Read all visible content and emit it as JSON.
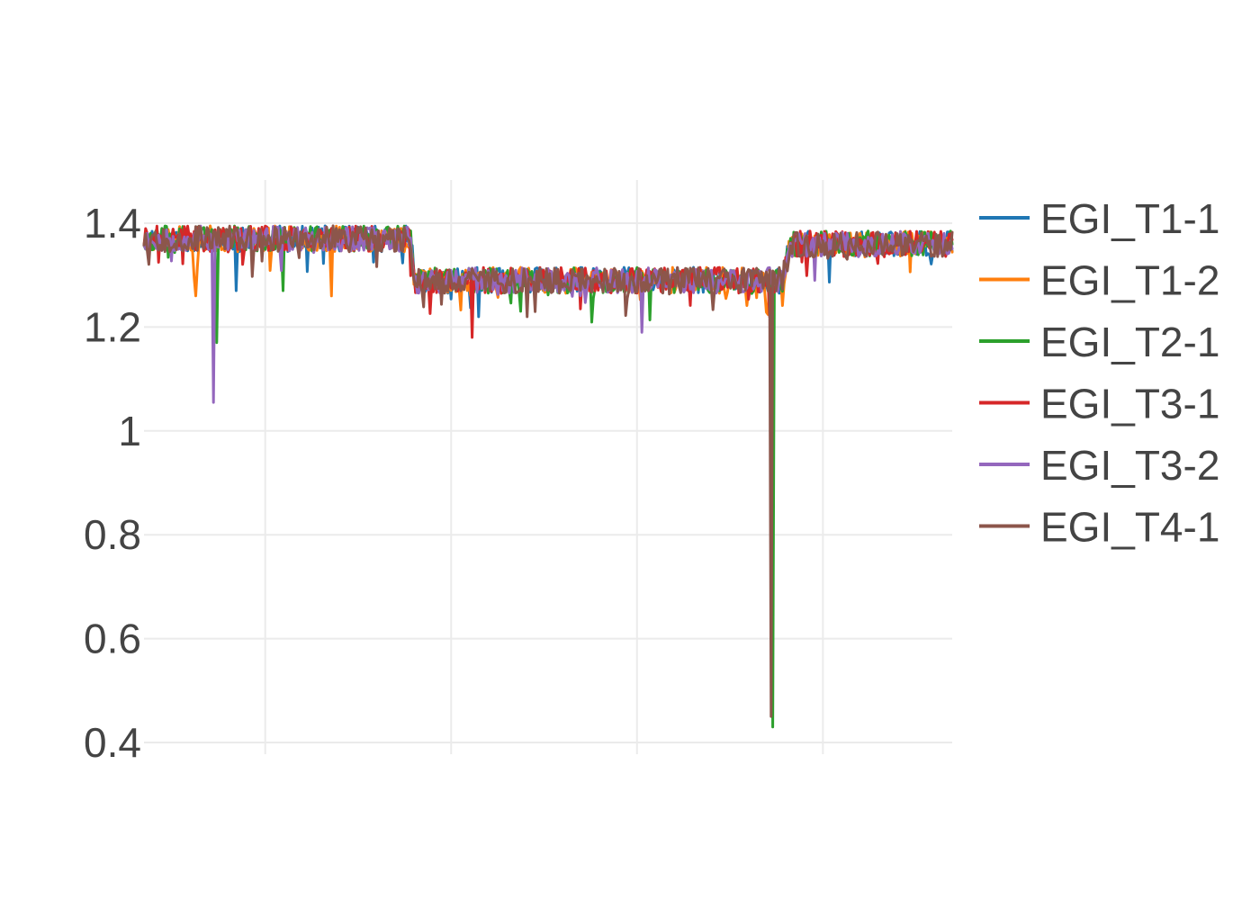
{
  "chart_data": {
    "type": "line",
    "title": "",
    "xlabel": "",
    "ylabel": "",
    "x_range": [
      0,
      1000
    ],
    "x_grid": [
      150,
      380,
      610,
      840
    ],
    "ylim": [
      0.4,
      1.48
    ],
    "y_ticks": [
      {
        "value": 0.4,
        "label": "0.4"
      },
      {
        "value": 0.6,
        "label": "0.6"
      },
      {
        "value": 0.8,
        "label": "0.8"
      },
      {
        "value": 1.0,
        "label": "1"
      },
      {
        "value": 1.2,
        "label": "1.2"
      },
      {
        "value": 1.4,
        "label": "1.4"
      }
    ],
    "grid": true,
    "legend_position": "right",
    "profile": {
      "segments": [
        {
          "x_start": 0,
          "x_end": 330,
          "level": 1.37
        },
        {
          "x_start": 335,
          "x_end": 790,
          "level": 1.29
        },
        {
          "x_start": 800,
          "x_end": 1000,
          "level": 1.36
        }
      ],
      "noise": 0.025
    },
    "series": [
      {
        "name": "EGI_T1-1",
        "color": "#1f77b4",
        "seed": 11,
        "spikes": [
          {
            "x": 115,
            "value": 1.27
          },
          {
            "x": 415,
            "value": 1.22
          }
        ]
      },
      {
        "name": "EGI_T1-2",
        "color": "#ff7f0e",
        "seed": 23,
        "spikes": [
          {
            "x": 65,
            "value": 1.26
          },
          {
            "x": 233,
            "value": 1.26
          }
        ]
      },
      {
        "name": "EGI_T2-1",
        "color": "#2ca02c",
        "seed": 37,
        "spikes": [
          {
            "x": 90,
            "value": 1.17
          },
          {
            "x": 778,
            "value": 0.43
          },
          {
            "x": 172,
            "value": 1.27
          }
        ]
      },
      {
        "name": "EGI_T3-1",
        "color": "#d62728",
        "seed": 41,
        "spikes": [
          {
            "x": 406,
            "value": 1.18
          },
          {
            "x": 775,
            "value": 1.22
          }
        ]
      },
      {
        "name": "EGI_T3-2",
        "color": "#9467bd",
        "seed": 53,
        "spikes": [
          {
            "x": 87,
            "value": 1.055
          },
          {
            "x": 616,
            "value": 1.19
          }
        ]
      },
      {
        "name": "EGI_T4-1",
        "color": "#8c564b",
        "seed": 67,
        "spikes": [
          {
            "x": 777,
            "value": 0.45
          },
          {
            "x": 475,
            "value": 1.22
          }
        ]
      }
    ]
  }
}
